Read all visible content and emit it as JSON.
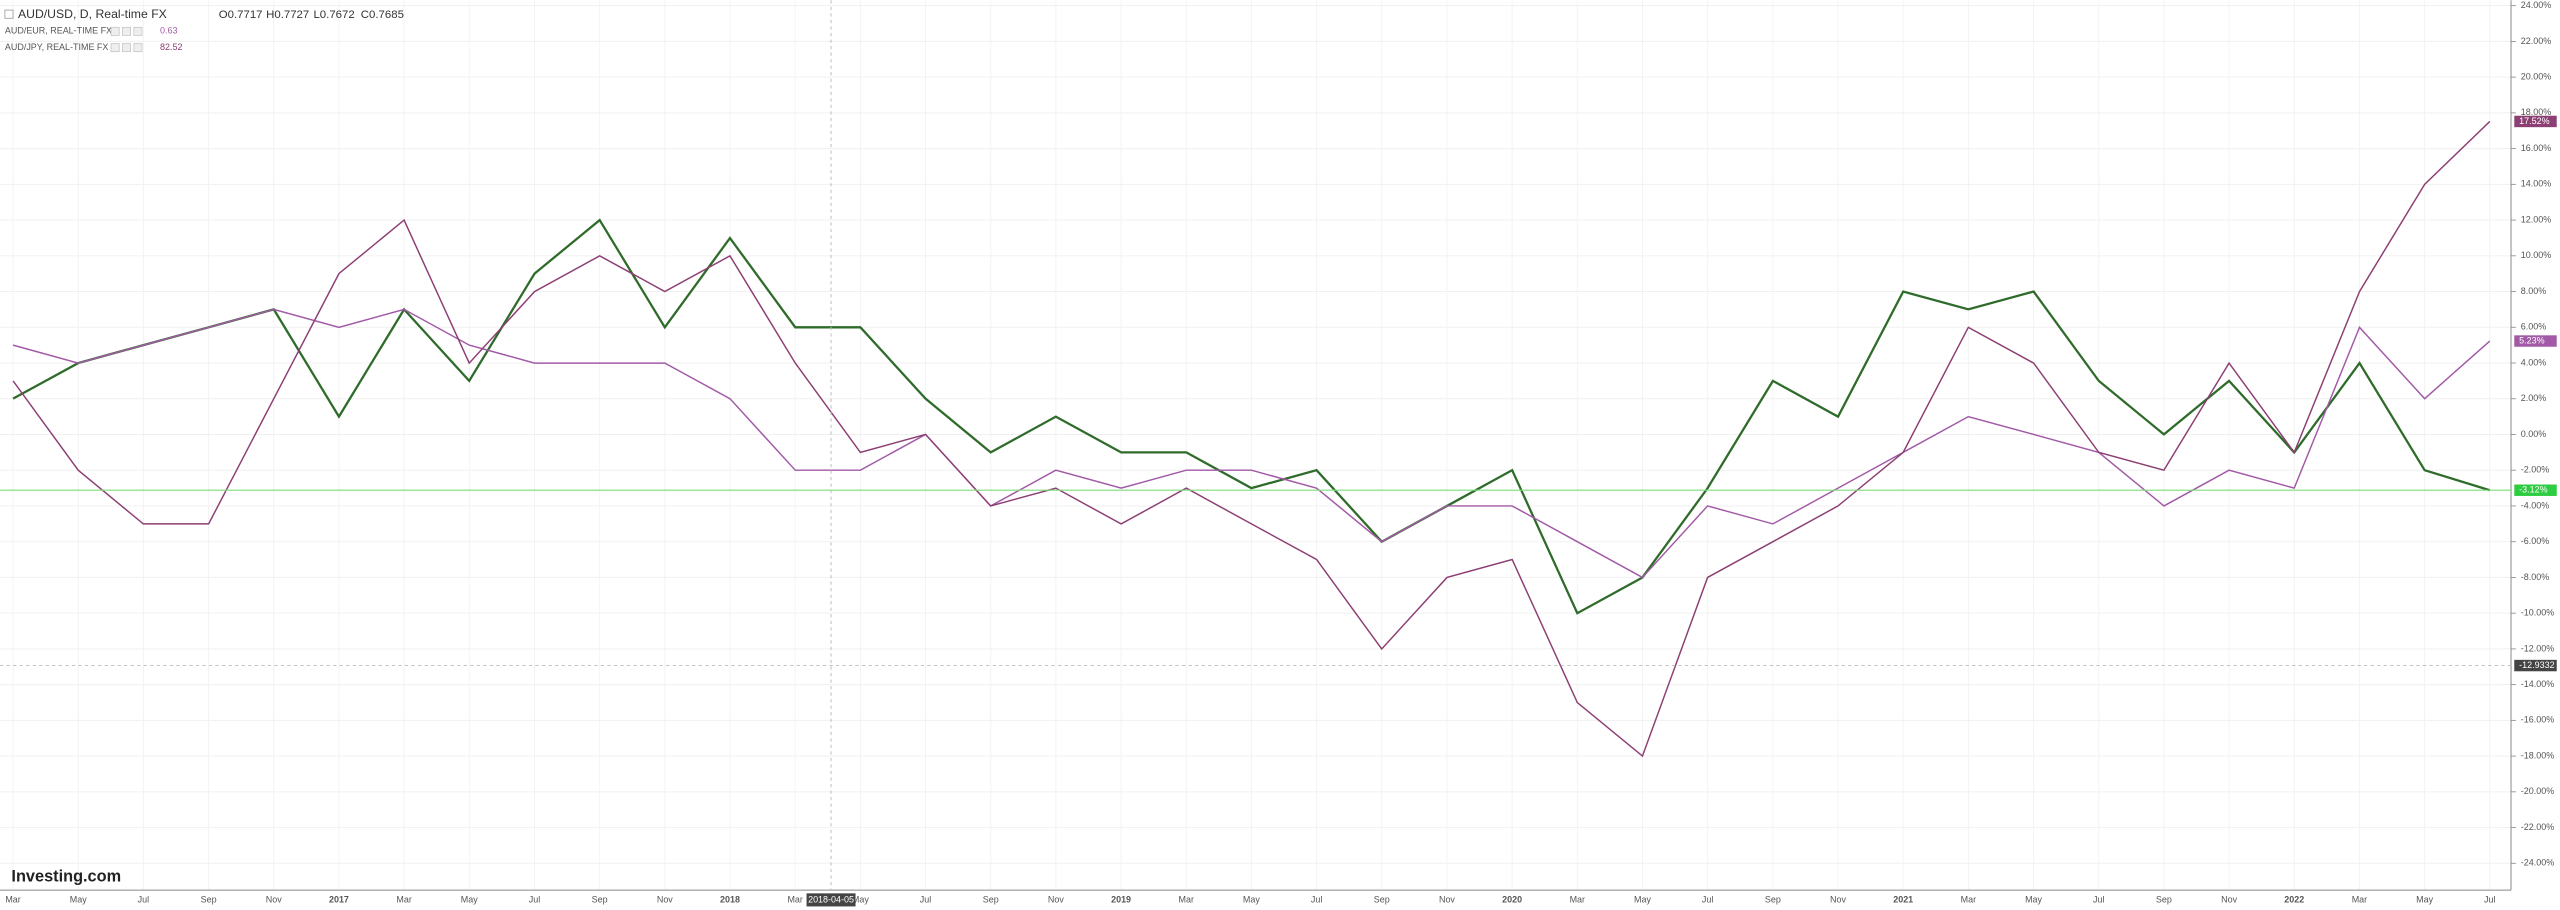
{
  "chart_data": {
    "type": "line",
    "legend_ohlc": [
      "O0.7717",
      "H0.7727",
      "L0.7672",
      "C0.7685"
    ],
    "logo": "Investing.com",
    "crosshair": {
      "date_label": "2018-04-05",
      "value": -12.9332
    },
    "categories": [
      "Mar",
      "May",
      "Jul",
      "Sep",
      "Nov",
      "2017",
      "Mar",
      "May",
      "Jul",
      "Sep",
      "Nov",
      "2018",
      "Mar",
      "May",
      "Jul",
      "Sep",
      "Nov",
      "2019",
      "Mar",
      "May",
      "Jul",
      "Sep",
      "Nov",
      "2020",
      "Mar",
      "May",
      "Jul",
      "Sep",
      "Nov",
      "2021",
      "Mar",
      "May",
      "Jul",
      "Sep",
      "Nov",
      "2022",
      "Mar",
      "May",
      "Jul"
    ],
    "series": [
      {
        "name": "AUD/USD, D, Real-time FX",
        "color": "#2f6b2a",
        "last_label": "-3.12%",
        "values": [
          2,
          4,
          5,
          6,
          7,
          1,
          7,
          3,
          9,
          12,
          6,
          11,
          6,
          6,
          2,
          -1,
          1,
          -1,
          -1,
          -3,
          -2,
          -6,
          -4,
          -2,
          -10,
          -8,
          -3,
          3,
          1,
          8,
          7,
          8,
          3,
          0,
          3,
          -1,
          4,
          -2,
          -3.12
        ]
      },
      {
        "name": "AUD/EUR, REAL-TIME FX",
        "legend_value": "0.63",
        "color": "#a25aa6",
        "last_label": "5.23%",
        "values": [
          5,
          4,
          5,
          6,
          7,
          6,
          7,
          5,
          4,
          4,
          4,
          2,
          -2,
          -2,
          0,
          -4,
          -2,
          -3,
          -2,
          -2,
          -3,
          -6,
          -4,
          -4,
          -6,
          -8,
          -4,
          -5,
          -3,
          -1,
          1,
          0,
          -1,
          -4,
          -2,
          -3,
          6,
          2,
          5.23
        ]
      },
      {
        "name": "AUD/JPY, REAL-TIME FX",
        "legend_value": "82.52",
        "color": "#8c3f73",
        "last_label": "17.52%",
        "values": [
          3,
          -2,
          -5,
          -5,
          2,
          9,
          12,
          4,
          8,
          10,
          8,
          10,
          4,
          -1,
          0,
          -4,
          -3,
          -5,
          -3,
          -5,
          -7,
          -12,
          -8,
          -7,
          -15,
          -18,
          -8,
          -6,
          -4,
          -1,
          6,
          4,
          -1,
          -2,
          4,
          -1,
          8,
          14,
          17.52
        ]
      }
    ],
    "ylim": [
      -25.5,
      24.3
    ],
    "yticks": [
      {
        "value": 24,
        "label": "24.00%"
      },
      {
        "value": 22,
        "label": "22.00%"
      },
      {
        "value": 20,
        "label": "20.00%"
      },
      {
        "value": 18,
        "label": "18.00%"
      },
      {
        "value": 16,
        "label": "16.00%"
      },
      {
        "value": 14,
        "label": "14.00%"
      },
      {
        "value": 12,
        "label": "12.00%"
      },
      {
        "value": 10,
        "label": "10.00%"
      },
      {
        "value": 8,
        "label": "8.00%"
      },
      {
        "value": 6,
        "label": "6.00%"
      },
      {
        "value": 4,
        "label": "4.00%"
      },
      {
        "value": 2,
        "label": "2.00%"
      },
      {
        "value": 0,
        "label": "0.00%"
      },
      {
        "value": -2,
        "label": "-2.00%"
      },
      {
        "value": -4,
        "label": "-4.00%"
      },
      {
        "value": -6,
        "label": "-6.00%"
      },
      {
        "value": -8,
        "label": "-8.00%"
      },
      {
        "value": -10,
        "label": "-10.00%"
      },
      {
        "value": -12,
        "label": "-12.00%"
      },
      {
        "value": -14,
        "label": "-14.00%"
      },
      {
        "value": -16,
        "label": "-16.00%"
      },
      {
        "value": -18,
        "label": "-18.00%"
      },
      {
        "value": -20,
        "label": "-20.00%"
      },
      {
        "value": -22,
        "label": "-22.00%"
      },
      {
        "value": -24,
        "label": "-24.00%"
      }
    ],
    "grid": true
  }
}
